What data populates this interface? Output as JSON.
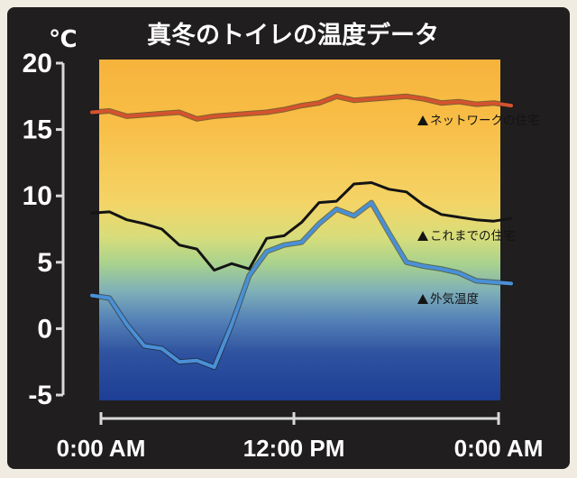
{
  "chart_data": {
    "type": "line",
    "title": "真冬のトイレの温度データ",
    "unit_label": "℃",
    "ylim": [
      -5,
      20
    ],
    "y_ticks": [
      "20",
      "15",
      "10",
      "5",
      "0",
      "-5"
    ],
    "x_ticks": [
      "0:00 AM",
      "12:00 PM",
      "0:00 AM"
    ],
    "xlim": [
      0,
      24
    ],
    "grid": false,
    "label_marker": "▲",
    "series": [
      {
        "name": "ネットワークの住宅",
        "color": "#d4532f",
        "x": [
          0,
          1,
          2,
          3,
          4,
          5,
          6,
          7,
          8,
          9,
          10,
          11,
          12,
          13,
          14,
          15,
          16,
          17,
          18,
          19,
          20,
          21,
          22,
          23,
          24
        ],
        "values": [
          16.3,
          16.4,
          16.0,
          16.1,
          16.2,
          16.3,
          15.8,
          16.0,
          16.1,
          16.2,
          16.3,
          16.5,
          16.8,
          17.0,
          17.5,
          17.2,
          17.3,
          17.4,
          17.5,
          17.3,
          17.0,
          17.1,
          16.9,
          17.0,
          16.8
        ]
      },
      {
        "name": "これまでの住宅",
        "color": "#141414",
        "x": [
          0,
          1,
          2,
          3,
          4,
          5,
          6,
          7,
          8,
          9,
          10,
          11,
          12,
          13,
          14,
          15,
          16,
          17,
          18,
          19,
          20,
          21,
          22,
          23,
          24
        ],
        "values": [
          8.7,
          8.8,
          8.2,
          7.9,
          7.5,
          6.3,
          6.0,
          4.4,
          4.9,
          4.5,
          6.8,
          7.0,
          8.0,
          9.5,
          9.6,
          10.9,
          11.0,
          10.5,
          10.3,
          9.3,
          8.6,
          8.4,
          8.2,
          8.1,
          8.3
        ]
      },
      {
        "name": "外気温度",
        "color": "#4a90d6",
        "x": [
          0,
          1,
          2,
          3,
          4,
          5,
          6,
          7,
          8,
          9,
          10,
          11,
          12,
          13,
          14,
          15,
          16,
          17,
          18,
          19,
          20,
          21,
          22,
          23,
          24
        ],
        "values": [
          2.5,
          2.3,
          0.3,
          -1.3,
          -1.5,
          -2.5,
          -2.4,
          -2.9,
          0.3,
          4.0,
          5.8,
          6.3,
          6.5,
          7.9,
          9.0,
          8.5,
          9.5,
          7.2,
          5.0,
          4.7,
          4.5,
          4.2,
          3.6,
          3.5,
          3.4
        ]
      }
    ]
  }
}
